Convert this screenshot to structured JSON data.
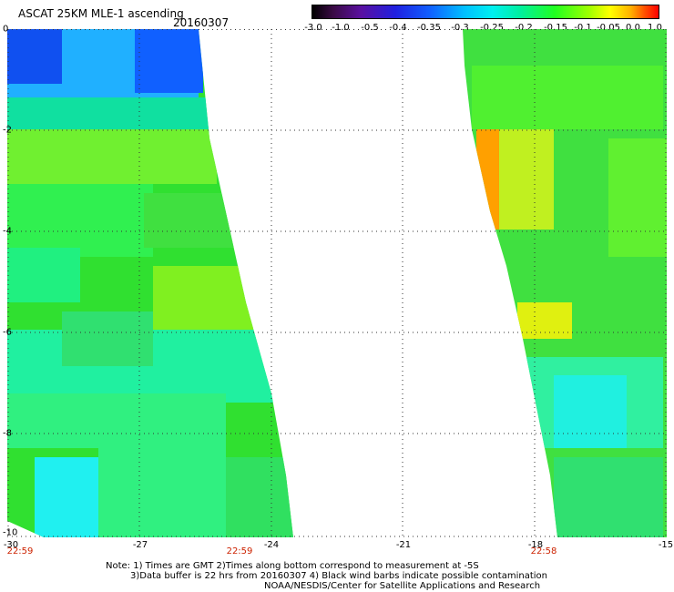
{
  "header": {
    "title": "ASCAT 25KM MLE-1 ascending",
    "date": "20160307"
  },
  "colorbar": {
    "ticks": [
      "-3.0",
      "-1.0",
      "-0.5",
      "-0.4",
      "-0.35",
      "-0.3",
      "-0.25",
      "-0.2",
      "-0.15",
      "-0.1",
      "-0.05",
      "0.0",
      "1.0"
    ]
  },
  "map": {
    "lon_range": [
      -30,
      -15
    ],
    "lat_range": [
      -10,
      0
    ],
    "y_ticks": [
      "0",
      "-2",
      "-4",
      "-6",
      "-8",
      "-10"
    ],
    "x_ticks": [
      "-30",
      "-27",
      "-24",
      "-21",
      "-18",
      "-15"
    ],
    "pass_times": [
      "22:59",
      "22:59",
      "22:58"
    ],
    "grid": true
  },
  "notes": {
    "line1": "Note: 1) Times are GMT 2)Times along bottom correspond to measurement at -5S",
    "line2": "3)Data buffer is 22 hrs from 20160307 4) Black wind barbs indicate possible contamination",
    "line3": "NOAA/NESDIS/Center for Satellite Applications and Research"
  }
}
